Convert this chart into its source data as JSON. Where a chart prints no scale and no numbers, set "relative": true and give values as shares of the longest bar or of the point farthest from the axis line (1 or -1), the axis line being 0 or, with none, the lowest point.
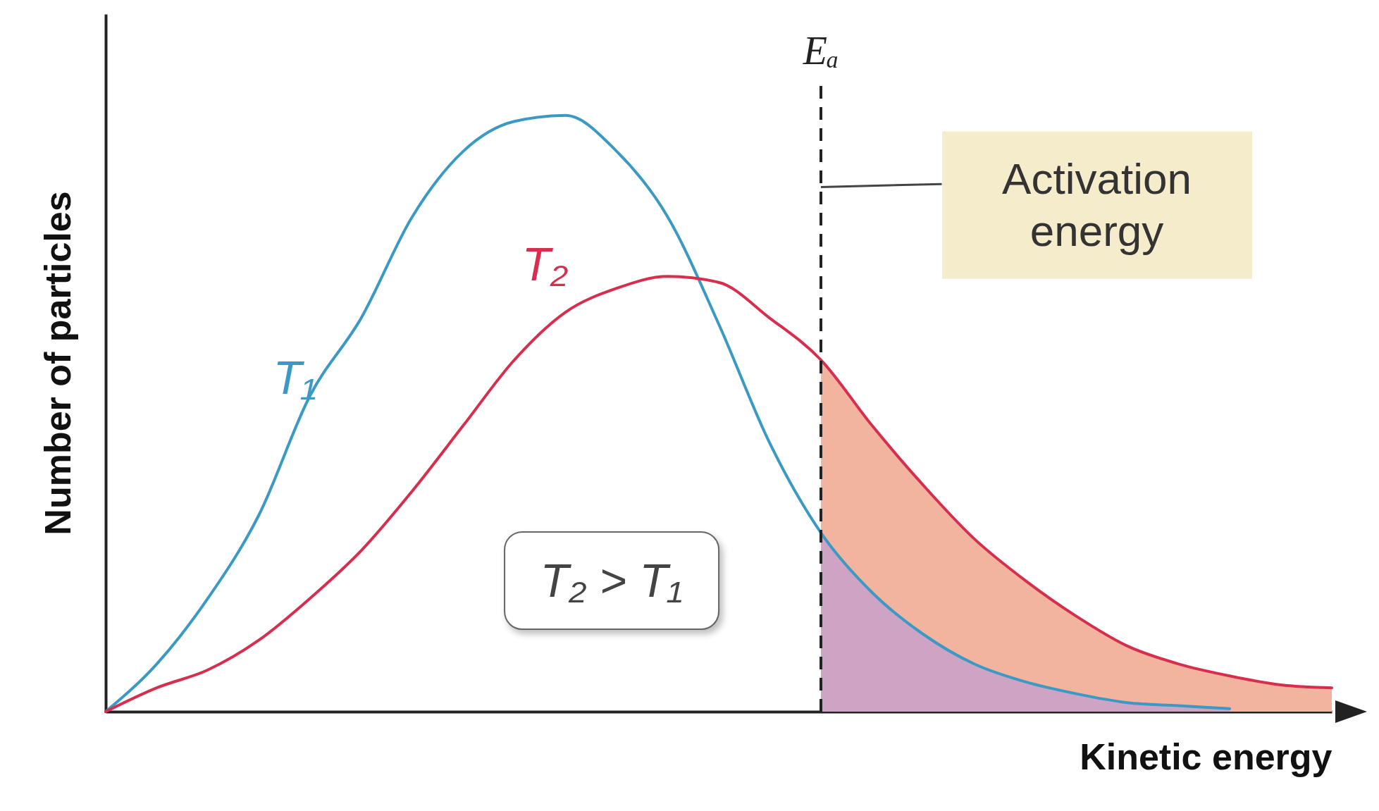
{
  "chart_data": {
    "type": "line",
    "relative": true,
    "xlabel": "Kinetic energy",
    "ylabel": "Number of particles",
    "tick_labels": false,
    "categories": [
      null,
      null,
      null,
      null,
      null,
      null,
      null,
      null,
      null,
      null,
      null,
      null,
      null,
      null,
      null,
      null,
      null,
      null,
      null,
      null,
      null,
      null,
      null,
      null,
      null
    ],
    "series": [
      {
        "type": "area",
        "color": "#f2b49e",
        "values": [
          null,
          null,
          null,
          null,
          null,
          null,
          null,
          null,
          null,
          null,
          null,
          null,
          null,
          null,
          0.59,
          0.48,
          0.38,
          0.29,
          0.22,
          0.16,
          0.11,
          0.08,
          0.06,
          0.045,
          0.04
        ]
      },
      {
        "type": "area",
        "color": "#cfa3c4",
        "values": [
          null,
          null,
          null,
          null,
          null,
          null,
          null,
          null,
          null,
          null,
          null,
          null,
          null,
          null,
          0.3,
          0.2,
          0.13,
          0.08,
          0.05,
          0.03,
          0.015,
          0.01,
          0.005,
          null,
          null
        ]
      },
      {
        "name": "T₁",
        "color": "#3a9ac4",
        "values": [
          0,
          0.08,
          0.19,
          0.33,
          0.53,
          0.66,
          0.83,
          0.94,
          0.99,
          1,
          0.94,
          0.83,
          0.65,
          0.45,
          0.3,
          0.2,
          0.13,
          0.08,
          0.05,
          0.03,
          0.015,
          0.01,
          0.005,
          null,
          null
        ]
      },
      {
        "name": "T₂",
        "color": "#d62e4c",
        "values": [
          0,
          0.04,
          0.07,
          0.12,
          0.19,
          0.27,
          0.37,
          0.48,
          0.59,
          0.67,
          0.71,
          0.73,
          0.72,
          0.66,
          0.59,
          0.48,
          0.38,
          0.29,
          0.22,
          0.16,
          0.11,
          0.08,
          0.06,
          0.045,
          0.04
        ]
      }
    ],
    "annotations": [
      "Eₐ",
      "T₂ > T₁",
      "Activation energy"
    ]
  }
}
